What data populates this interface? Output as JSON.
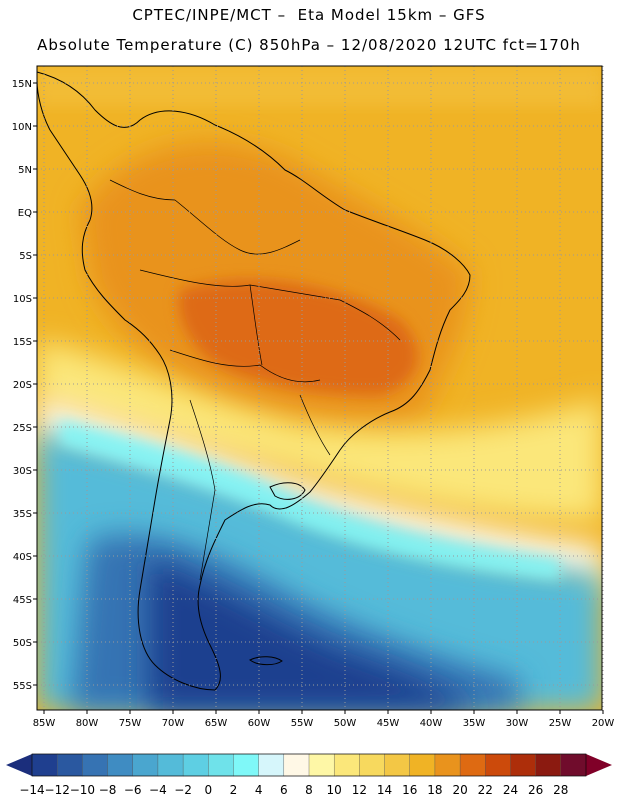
{
  "header": {
    "line1": "CPTEC/INPE/MCT –  Eta Model 15km – GFS",
    "line2": "Absolute Temperature (C) 850hPa – 12/08/2020 12UTC fct=170h"
  },
  "map": {
    "lat_labels": [
      "15N",
      "10N",
      "5N",
      "EQ",
      "5S",
      "10S",
      "15S",
      "20S",
      "25S",
      "30S",
      "35S",
      "40S",
      "45S",
      "50S",
      "55S"
    ],
    "lon_labels": [
      "85W",
      "80W",
      "75W",
      "70W",
      "65W",
      "60W",
      "55W",
      "50W",
      "45W",
      "40W",
      "35W",
      "30W",
      "25W",
      "20W"
    ],
    "grid_style": "dotted",
    "region": "South America"
  },
  "colorbar": {
    "labels": [
      "-14",
      "-12",
      "-10",
      "-8",
      "-6",
      "-4",
      "-2",
      "0",
      "2",
      "4",
      "6",
      "8",
      "10",
      "12",
      "14",
      "16",
      "18",
      "20",
      "22",
      "24",
      "26",
      "28"
    ],
    "colors": [
      "#1f3f8f",
      "#2a58a0",
      "#3673b3",
      "#3f8cc2",
      "#4aa6cf",
      "#54bbd9",
      "#5ecfe3",
      "#6fe2ea",
      "#7ff8f8",
      "#d6f6fb",
      "#fff8e6",
      "#fef7a6",
      "#fbe77a",
      "#f7d95e",
      "#f3c745",
      "#f0b325",
      "#e9931d",
      "#de6a12",
      "#cc4a0b",
      "#ad2e0a",
      "#8b1a10",
      "#700c2c"
    ],
    "arrow_low_color": "#1b2e7c",
    "arrow_high_color": "#800028"
  }
}
